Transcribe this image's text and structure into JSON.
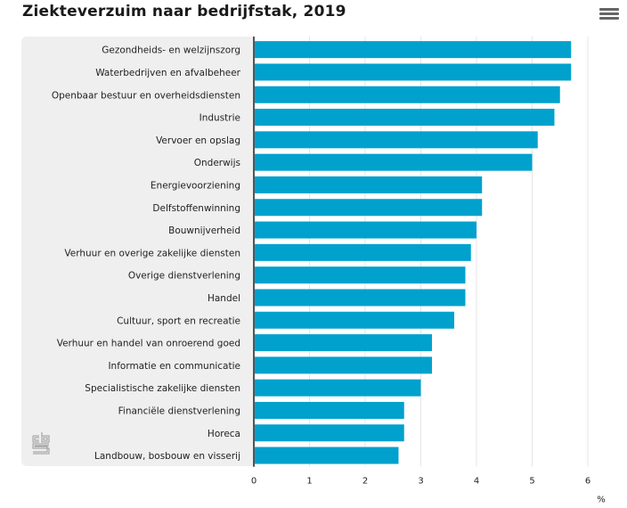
{
  "header": {
    "title": "Ziekteverzuim naar bedrijfstak, 2019",
    "menu_icon": "hamburger-menu-icon"
  },
  "logo": {
    "icon": "cbs-logo-icon"
  },
  "colors": {
    "bar": "#00a1cd",
    "panel": "#efefef",
    "axis": "#555555",
    "grid": "#e6e6e6"
  },
  "chart_data": {
    "type": "bar",
    "orientation": "horizontal",
    "title": "Ziekteverzuim naar bedrijfstak, 2019",
    "xlabel": "%",
    "ylabel": "",
    "xlim": [
      0,
      6
    ],
    "xticks": [
      "0",
      "1",
      "2",
      "3",
      "4",
      "5",
      "6"
    ],
    "grid": true,
    "categories": [
      "Gezondheids- en welzijnszorg",
      "Waterbedrijven en afvalbeheer",
      "Openbaar bestuur en overheidsdiensten",
      "Industrie",
      "Vervoer en opslag",
      "Onderwijs",
      "Energievoorziening",
      "Delfstoffenwinning",
      "Bouwnijverheid",
      "Verhuur en overige zakelijke diensten",
      "Overige dienstverlening",
      "Handel",
      "Cultuur, sport en recreatie",
      "Verhuur en handel van onroerend goed",
      "Informatie en communicatie",
      "Specialistische zakelijke diensten",
      "Financiële dienstverlening",
      "Horeca",
      "Landbouw, bosbouw en visserij"
    ],
    "values": [
      5.7,
      5.7,
      5.5,
      5.4,
      5.1,
      5.0,
      4.1,
      4.1,
      4.0,
      3.9,
      3.8,
      3.8,
      3.6,
      3.2,
      3.2,
      3.0,
      2.7,
      2.7,
      2.6
    ]
  }
}
